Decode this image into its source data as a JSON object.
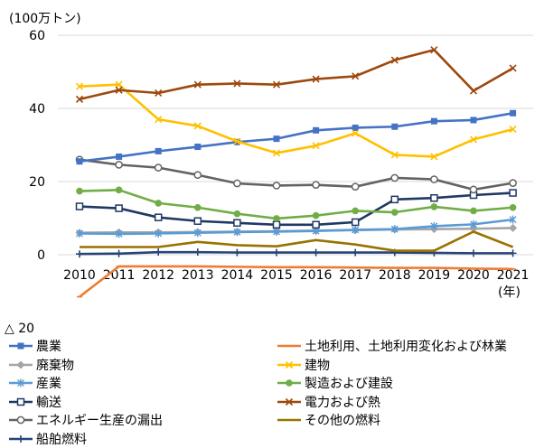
{
  "chart_data": {
    "type": "line",
    "unit_label": "(100万トン)",
    "x_unit_label": "(年)",
    "categories": [
      "2010",
      "2011",
      "2012",
      "2013",
      "2014",
      "2015",
      "2016",
      "2017",
      "2018",
      "2019",
      "2020",
      "2021"
    ],
    "ylim": [
      -20,
      60
    ],
    "y_ticks": [
      {
        "value": 60,
        "label": "60"
      },
      {
        "value": 40,
        "label": "40"
      },
      {
        "value": 20,
        "label": "20"
      },
      {
        "value": 0,
        "label": "0"
      },
      {
        "value": -20,
        "label": "△ 20"
      }
    ],
    "grid": true,
    "legend_placement": "bottom",
    "series": [
      {
        "name": "農業",
        "color": "#4472C4",
        "marker": "square",
        "values": [
          25.5,
          26.8,
          28.3,
          29.5,
          30.8,
          31.7,
          34.0,
          34.7,
          35.0,
          36.5,
          36.8,
          38.7
        ]
      },
      {
        "name": "土地利用、土地利用変化および林業",
        "color": "#ED7D31",
        "marker": "cross",
        "values": [
          -11.5,
          -3.2,
          -3.2,
          -3.2,
          -3.3,
          -3.4,
          -3.4,
          -3.5,
          -3.6,
          -3.6,
          -3.8,
          -3.9
        ]
      },
      {
        "name": "廃棄物",
        "color": "#A5A5A5",
        "marker": "diamond",
        "values": [
          6.0,
          6.1,
          6.1,
          6.2,
          6.3,
          6.4,
          6.6,
          6.7,
          6.9,
          7.0,
          7.1,
          7.3
        ]
      },
      {
        "name": "建物",
        "color": "#FFC000",
        "marker": "x",
        "values": [
          46.0,
          46.5,
          37.0,
          35.2,
          31.0,
          27.8,
          29.8,
          33.2,
          27.3,
          26.8,
          31.5,
          34.3
        ]
      },
      {
        "name": "産業",
        "color": "#5B9BD5",
        "marker": "asterisk",
        "values": [
          5.8,
          5.7,
          5.8,
          6.0,
          6.2,
          6.3,
          6.5,
          6.8,
          7.0,
          7.8,
          8.3,
          9.6
        ]
      },
      {
        "name": "製造および建設",
        "color": "#70AD47",
        "marker": "circle",
        "values": [
          17.4,
          17.7,
          14.1,
          12.9,
          11.2,
          9.9,
          10.7,
          12.0,
          11.6,
          13.1,
          12.0,
          12.9
        ]
      },
      {
        "name": "輸送",
        "color": "#203864",
        "marker": "hollow-square",
        "values": [
          13.2,
          12.7,
          10.2,
          9.2,
          8.7,
          8.2,
          8.2,
          8.9,
          15.1,
          15.5,
          16.3,
          16.9
        ]
      },
      {
        "name": "電力および熱",
        "color": "#9E480E",
        "marker": "x",
        "values": [
          42.5,
          45.0,
          44.2,
          46.5,
          46.8,
          46.5,
          48.0,
          48.8,
          53.2,
          56.0,
          44.8,
          51.0
        ]
      },
      {
        "name": "エネルギー生産の漏出",
        "color": "#636363",
        "marker": "hollow-circle",
        "values": [
          26.0,
          24.6,
          23.8,
          21.8,
          19.5,
          18.9,
          19.1,
          18.6,
          21.0,
          20.6,
          17.8,
          19.6
        ]
      },
      {
        "name": "その他の燃料",
        "color": "#997300",
        "marker": "none",
        "values": [
          2.1,
          2.1,
          2.1,
          3.5,
          2.6,
          2.3,
          4.0,
          2.8,
          1.1,
          1.1,
          6.3,
          2.1
        ]
      },
      {
        "name": "船舶燃料",
        "color": "#264478",
        "marker": "plus",
        "values": [
          0.2,
          0.3,
          0.7,
          0.7,
          0.6,
          0.6,
          0.6,
          0.6,
          0.6,
          0.5,
          0.4,
          0.4
        ]
      }
    ]
  }
}
